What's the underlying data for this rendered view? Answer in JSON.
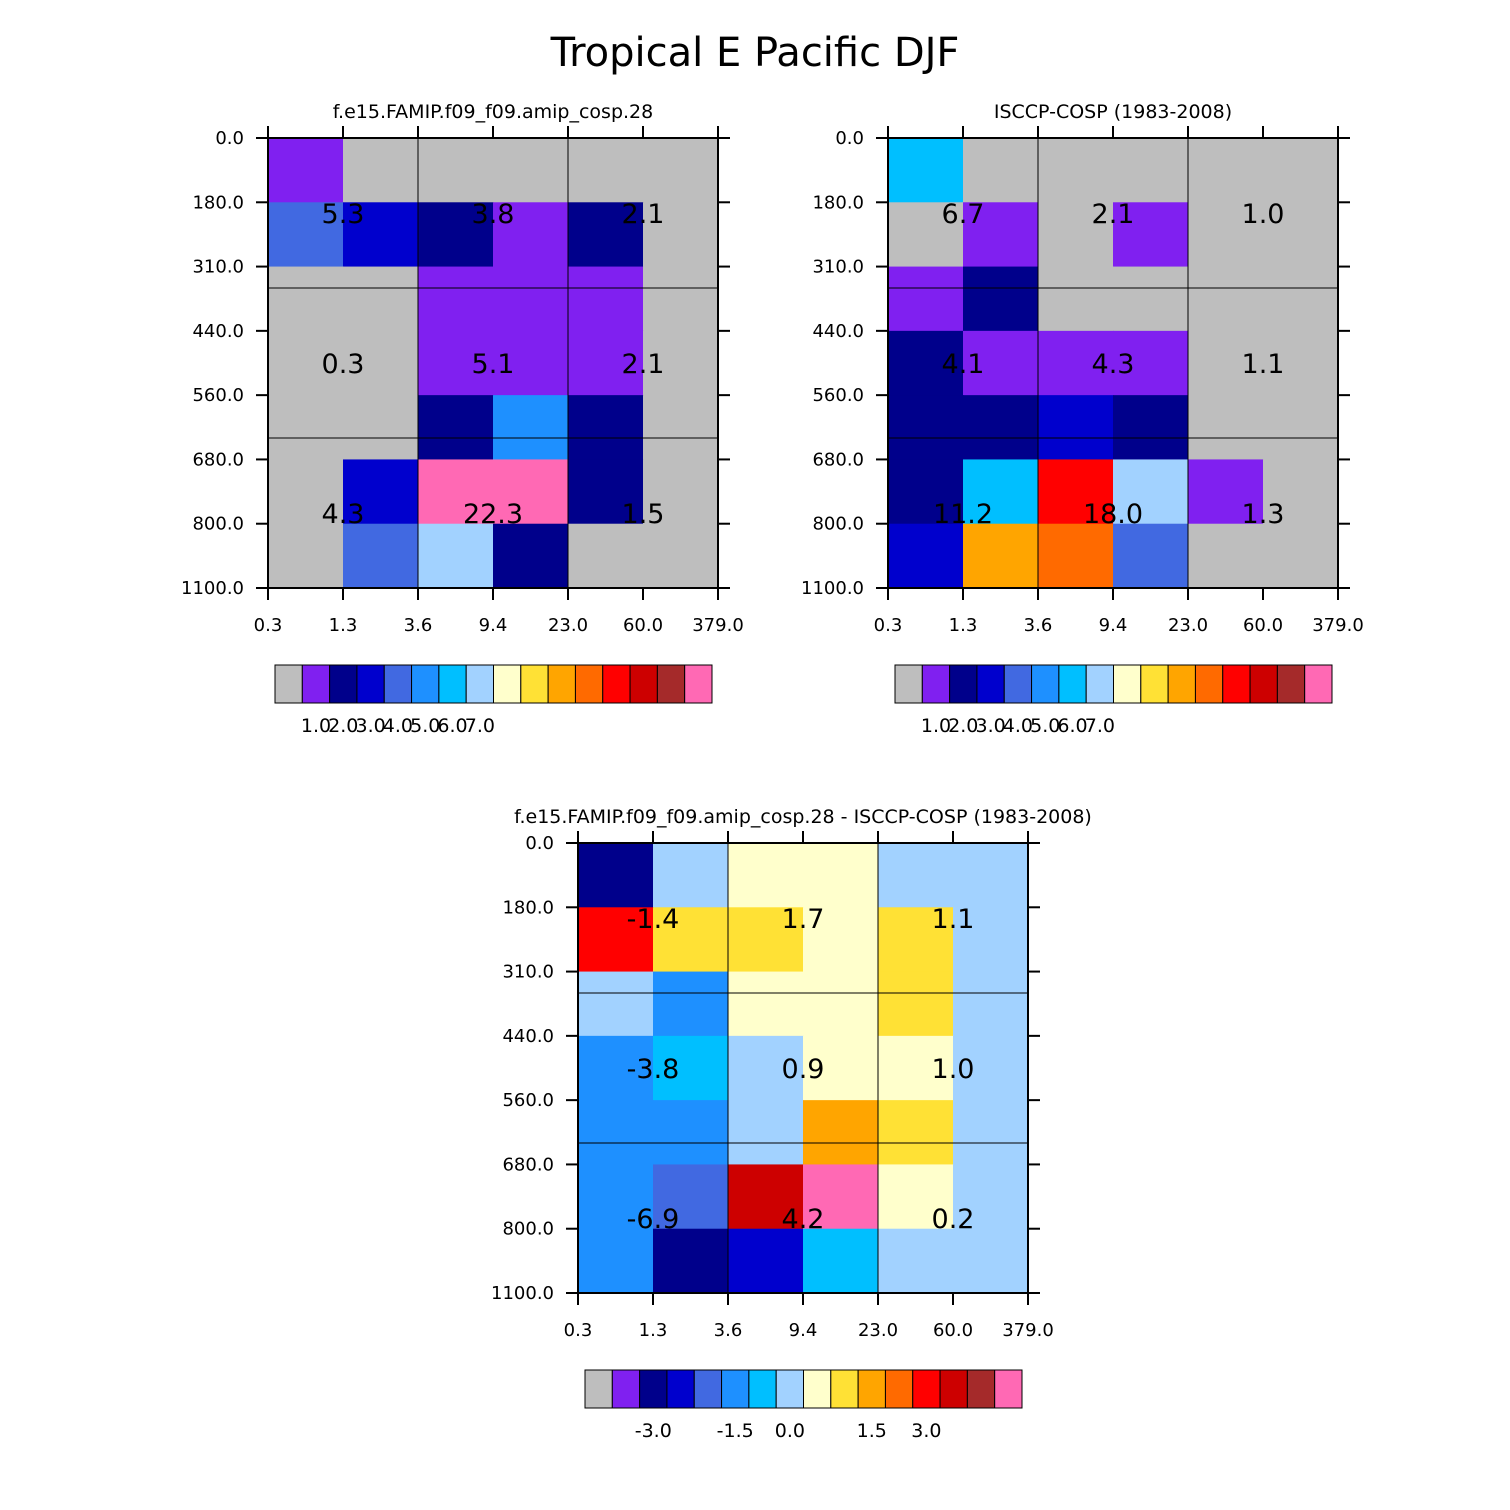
{
  "chart_data": {
    "title": "Tropical E Pacific DJF",
    "y_ticks": [
      "0.0",
      "180.0",
      "310.0",
      "440.0",
      "560.0",
      "680.0",
      "800.0",
      "1100.0"
    ],
    "x_ticks": [
      "0.3",
      "1.3",
      "3.6",
      "9.4",
      "23.0",
      "60.0",
      "379.0"
    ],
    "colors": {
      "palette": [
        "#bebebe",
        "#8020f0",
        "#00008b",
        "#0000cd",
        "#4169e1",
        "#1e90ff",
        "#00bfff",
        "#a2d2ff",
        "#ffffcc",
        "#ffe135",
        "#ffa500",
        "#ff6a00",
        "#ff0000",
        "#cd0000",
        "#a52a2a",
        "#ff69b4"
      ],
      "grid": "#000000"
    },
    "panels": [
      {
        "type": "heatmap",
        "title": "f.e15.FAMIP.f09_f09.amip_cosp.28",
        "cells": [
          [
            1,
            0,
            0,
            0,
            0,
            0
          ],
          [
            4,
            3,
            2,
            1,
            2,
            0
          ],
          [
            0,
            0,
            1,
            1,
            1,
            0
          ],
          [
            0,
            0,
            1,
            1,
            1,
            0
          ],
          [
            0,
            0,
            2,
            5,
            2,
            0
          ],
          [
            0,
            3,
            15,
            15,
            2,
            0
          ],
          [
            0,
            4,
            7,
            2,
            0,
            0
          ]
        ],
        "box_values": [
          [
            "5.3",
            "3.8",
            "2.1"
          ],
          [
            "0.3",
            "5.1",
            "2.1"
          ],
          [
            "4.3",
            "22.3",
            "1.5"
          ]
        ],
        "colorbar_ticks": [
          "1.0",
          "2.0",
          "3.0",
          "4.0",
          "5.0",
          "6.0",
          "7.0"
        ]
      },
      {
        "type": "heatmap",
        "title": "ISCCP-COSP (1983-2008)",
        "cells": [
          [
            6,
            0,
            0,
            0,
            0,
            0
          ],
          [
            0,
            1,
            0,
            1,
            0,
            0
          ],
          [
            1,
            2,
            0,
            0,
            0,
            0
          ],
          [
            2,
            1,
            1,
            1,
            0,
            0
          ],
          [
            2,
            2,
            3,
            2,
            0,
            0
          ],
          [
            2,
            6,
            12,
            7,
            1,
            0
          ],
          [
            3,
            10,
            11,
            4,
            0,
            0
          ]
        ],
        "box_values": [
          [
            "6.7",
            "2.1",
            "1.0"
          ],
          [
            "4.1",
            "4.3",
            "1.1"
          ],
          [
            "11.2",
            "18.0",
            "1.3"
          ]
        ],
        "colorbar_ticks": [
          "1.0",
          "2.0",
          "3.0",
          "4.0",
          "5.0",
          "6.0",
          "7.0"
        ]
      },
      {
        "type": "heatmap",
        "title": "f.e15.FAMIP.f09_f09.amip_cosp.28 - ISCCP-COSP (1983-2008)",
        "cells": [
          [
            2,
            7,
            8,
            8,
            7,
            7
          ],
          [
            12,
            9,
            9,
            8,
            9,
            7
          ],
          [
            7,
            5,
            8,
            8,
            9,
            7
          ],
          [
            5,
            6,
            7,
            8,
            8,
            7
          ],
          [
            5,
            5,
            7,
            10,
            9,
            7
          ],
          [
            5,
            4,
            13,
            15,
            8,
            7
          ],
          [
            5,
            2,
            3,
            6,
            7,
            7
          ]
        ],
        "box_values": [
          [
            "-1.4",
            "1.7",
            "1.1"
          ],
          [
            "-3.8",
            "0.9",
            "1.0"
          ],
          [
            "-6.9",
            "4.2",
            "0.2"
          ]
        ],
        "colorbar_ticks": [
          "-3.0",
          "-1.5",
          "0.0",
          "1.5",
          "3.0"
        ]
      }
    ]
  }
}
